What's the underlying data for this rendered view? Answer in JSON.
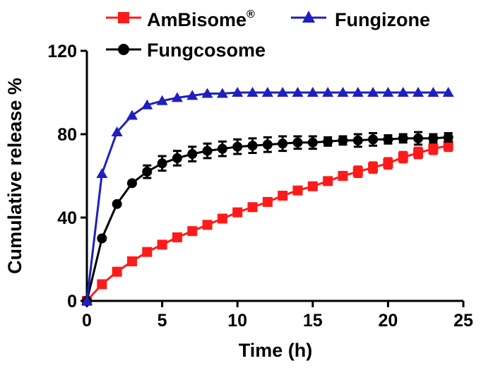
{
  "chart_data": {
    "type": "line",
    "xlabel": "Time (h)",
    "ylabel": "Cumulative release %",
    "xlim": [
      0,
      25
    ],
    "ylim": [
      0,
      120
    ],
    "xticks": [
      0,
      5,
      10,
      15,
      20,
      25
    ],
    "yticks": [
      0,
      40,
      80,
      120
    ],
    "grid": false,
    "legend_position": "top",
    "x": [
      0,
      1,
      2,
      3,
      4,
      5,
      6,
      7,
      8,
      9,
      10,
      11,
      12,
      13,
      14,
      15,
      16,
      17,
      18,
      19,
      20,
      21,
      22,
      23,
      24
    ],
    "series": [
      {
        "name": "AmBisome",
        "name_superscript": "®",
        "color": "#ff1a1a",
        "marker": "square",
        "values": [
          0,
          8,
          14,
          19,
          23.5,
          27,
          30.5,
          33.5,
          36.5,
          39.5,
          42.5,
          45,
          47.5,
          50.5,
          53,
          55,
          57.5,
          60,
          62,
          64,
          66,
          69,
          71,
          73,
          74.5
        ],
        "errors": [
          0,
          0,
          0,
          0,
          0,
          0,
          0,
          0,
          0,
          0,
          0,
          0,
          0,
          0,
          0,
          0,
          0,
          0,
          2.5,
          2.5,
          2.5,
          2.5,
          2.5,
          2.5,
          2.5
        ]
      },
      {
        "name": "Fungizone",
        "color": "#1f1fbf",
        "marker": "triangle",
        "values": [
          0,
          61,
          81,
          89,
          94,
          96,
          97.5,
          98.5,
          99.5,
          99.5,
          100,
          100,
          100,
          100,
          100,
          100,
          100,
          100,
          100,
          100,
          100,
          100,
          100,
          100,
          100
        ],
        "errors": [
          0,
          0,
          0,
          0,
          0,
          0,
          0,
          0,
          0,
          0,
          0,
          0,
          0,
          0,
          0,
          0,
          0,
          0,
          0,
          0,
          0,
          0,
          0,
          0,
          0
        ]
      },
      {
        "name": "Fungcosome",
        "color": "#000000",
        "marker": "circle",
        "values": [
          0,
          30,
          46.5,
          56.5,
          62,
          66,
          68.5,
          70.5,
          72,
          73,
          74,
          74.5,
          75,
          75.5,
          76,
          76,
          76.5,
          77,
          77,
          77.5,
          77.5,
          78,
          78,
          78,
          78.5
        ],
        "errors": [
          0,
          0,
          0,
          0,
          3,
          3.5,
          3.5,
          3.5,
          3.5,
          3.5,
          3.5,
          3.5,
          3.5,
          3.5,
          3,
          3,
          2,
          2,
          3,
          3,
          2,
          2,
          3,
          2,
          2
        ]
      }
    ]
  }
}
